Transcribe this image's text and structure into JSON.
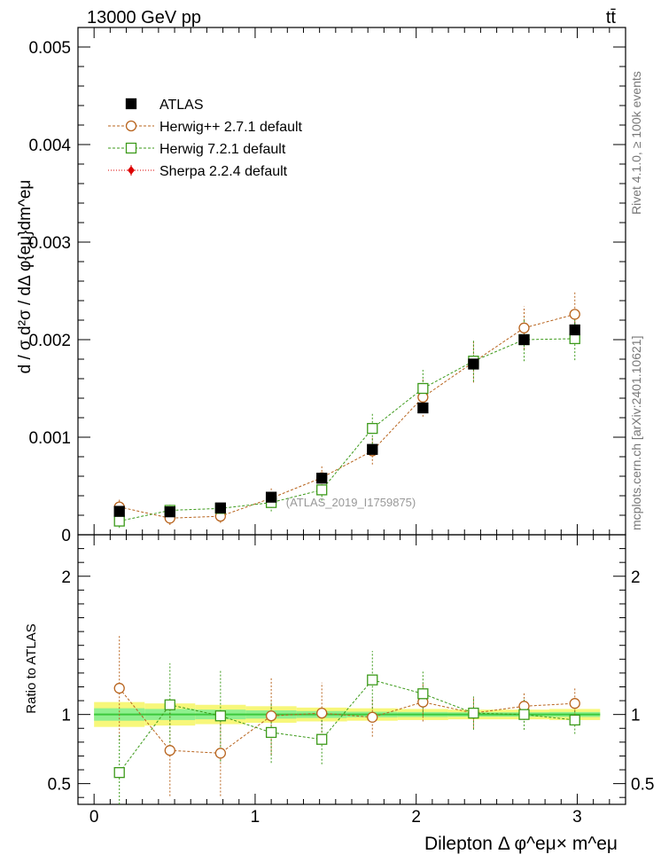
{
  "header": {
    "energy_label": "13000 GeV pp",
    "process_label": "tt̄"
  },
  "side_labels": {
    "rivet": "Rivet 4.1.0, ≥ 100k events",
    "mcplots": "mcplots.cern.ch [arXiv:2401.10621]"
  },
  "watermark": "(ATLAS_2019_I1759875)",
  "colors": {
    "atlas": "#000000",
    "herwigpp": "#b8641e",
    "herwig7": "#3c9a1a",
    "sherpa": "#dd0000",
    "band_outer": "#f7f77a",
    "band_inner": "#8ff08f",
    "band_line": "#3cc83c"
  },
  "chart_data": [
    {
      "type": "scatter",
      "title": "",
      "ylabel": "d / σ d²σ / dΔ φ{eμ}dm^eμ",
      "xlabel": "",
      "xlim": [
        -0.1,
        3.3
      ],
      "ylim": [
        0,
        0.0052
      ],
      "y_ticks": [
        0,
        0.001,
        0.002,
        0.003,
        0.004,
        0.005
      ],
      "y_tick_labels": [
        "0",
        "0.001",
        "0.002",
        "0.003",
        "0.004",
        "0.005"
      ],
      "legend": {
        "position": "top-left",
        "entries": [
          "ATLAS",
          "Herwig++ 2.7.1 default",
          "Herwig 7.2.1 default",
          "Sherpa 2.2.4 default"
        ]
      },
      "x": [
        0.157,
        0.471,
        0.785,
        1.1,
        1.414,
        1.728,
        2.042,
        2.356,
        2.67,
        2.985
      ],
      "series": [
        {
          "name": "ATLAS",
          "values": [
            0.00024,
            0.000235,
            0.000275,
            0.000385,
            0.00058,
            0.000875,
            0.0013,
            0.00175,
            0.002,
            0.0021
          ],
          "errors": [
            2e-05,
            2e-05,
            2e-05,
            2e-05,
            3e-05,
            4e-05,
            5e-05,
            6e-05,
            7e-05,
            8e-05
          ]
        },
        {
          "name": "Herwig++ 2.7.1 default",
          "values": [
            0.000285,
            0.00017,
            0.00019,
            0.000375,
            0.000585,
            0.00086,
            0.00141,
            0.00177,
            0.00212,
            0.00226
          ],
          "errors": [
            9e-05,
            7e-05,
            7e-05,
            0.0001,
            0.00012,
            0.00014,
            0.0002,
            0.00021,
            0.00022,
            0.00023
          ]
        },
        {
          "name": "Herwig 7.2.1 default",
          "values": [
            0.00014,
            0.00025,
            0.00027,
            0.00033,
            0.00046,
            0.00109,
            0.0015,
            0.00178,
            0.002,
            0.00201
          ],
          "errors": [
            7e-05,
            7e-05,
            7e-05,
            9e-05,
            0.00011,
            0.00016,
            0.00019,
            0.00021,
            0.00022,
            0.00022
          ]
        }
      ]
    },
    {
      "type": "scatter",
      "title": "",
      "ylabel": "Ratio to ATLAS",
      "xlabel": "Dilepton Δ φ^eμ× m^eμ",
      "xlim": [
        -0.1,
        3.3
      ],
      "ylim": [
        0.35,
        2.3
      ],
      "x_ticks": [
        0,
        1,
        2,
        3
      ],
      "x_tick_labels": [
        "0",
        "1",
        "2",
        "3"
      ],
      "y_ticks": [
        0.5,
        1,
        2
      ],
      "y_tick_labels": [
        "0.5",
        "1",
        "2"
      ],
      "x": [
        0.157,
        0.471,
        0.785,
        1.1,
        1.414,
        1.728,
        2.042,
        2.356,
        2.67,
        2.985
      ],
      "bin_edges": [
        0,
        0.314,
        0.628,
        0.942,
        1.257,
        1.571,
        1.885,
        2.199,
        2.513,
        2.827,
        3.142
      ],
      "band_outer_halfwidth": [
        0.09,
        0.08,
        0.07,
        0.06,
        0.05,
        0.045,
        0.04,
        0.035,
        0.035,
        0.04
      ],
      "band_inner_halfwidth": [
        0.045,
        0.04,
        0.035,
        0.03,
        0.025,
        0.02,
        0.018,
        0.016,
        0.016,
        0.018
      ],
      "series": [
        {
          "name": "Herwig++ 2.7.1 default",
          "values": [
            1.19,
            0.74,
            0.72,
            0.99,
            1.01,
            0.98,
            1.09,
            1.01,
            1.06,
            1.08
          ],
          "errors": [
            0.38,
            0.33,
            0.31,
            0.28,
            0.22,
            0.14,
            0.14,
            0.11,
            0.1,
            0.11
          ]
        },
        {
          "name": "Herwig 7.2.1 default",
          "values": [
            0.58,
            1.07,
            0.99,
            0.87,
            0.82,
            1.25,
            1.15,
            1.01,
            1.0,
            0.96
          ],
          "errors": [
            0.28,
            0.3,
            0.33,
            0.22,
            0.18,
            0.21,
            0.16,
            0.12,
            0.11,
            0.1
          ]
        }
      ]
    }
  ]
}
